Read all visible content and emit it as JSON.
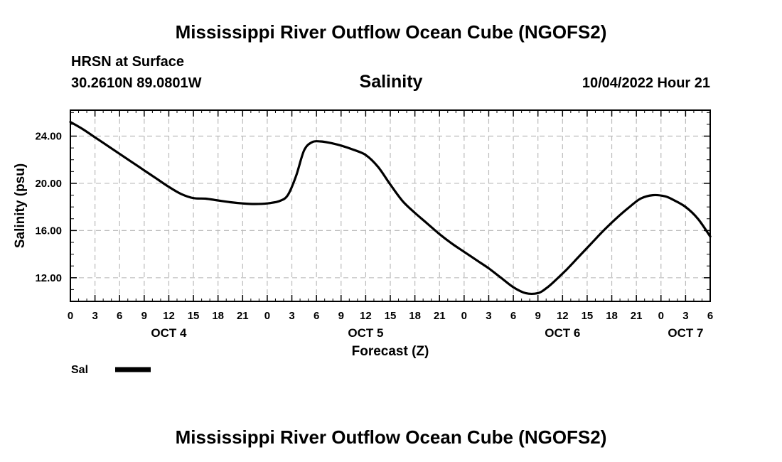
{
  "title_top": "Mississippi River Outflow Ocean Cube (NGOFS2)",
  "title_bottom": "Mississippi River Outflow Ocean Cube (NGOFS2)",
  "station": "HRSN at Surface",
  "coords": "30.2610N  89.0801W",
  "datetime": "10/04/2022 Hour 21",
  "colors": {
    "line": "#000000",
    "grid": "#bbbbbb",
    "frame": "#000000"
  },
  "chart_data": {
    "type": "line",
    "title": "Salinity",
    "xlabel": "Forecast (Z)",
    "ylabel": "Salinity (psu)",
    "xlim": [
      0,
      78
    ],
    "ylim": [
      10,
      26.2
    ],
    "yticks": [
      12,
      16,
      20,
      24
    ],
    "ytick_labels": [
      "12.00",
      "16.00",
      "20.00",
      "24.00"
    ],
    "xticks": [
      0,
      3,
      6,
      9,
      12,
      15,
      18,
      21,
      24,
      27,
      30,
      33,
      36,
      39,
      42,
      45,
      48,
      51,
      54,
      57,
      60,
      63,
      66,
      69,
      72,
      75,
      78
    ],
    "xtick_labels": [
      "0",
      "3",
      "6",
      "9",
      "12",
      "15",
      "18",
      "21",
      "0",
      "3",
      "6",
      "9",
      "12",
      "15",
      "18",
      "21",
      "0",
      "3",
      "6",
      "9",
      "12",
      "15",
      "18",
      "21",
      "0",
      "3",
      "6"
    ],
    "day_labels": [
      {
        "label": "OCT 4",
        "x": 12
      },
      {
        "label": "OCT 5",
        "x": 36
      },
      {
        "label": "OCT 6",
        "x": 60
      },
      {
        "label": "OCT 7",
        "x": 75
      }
    ],
    "grid": true,
    "legend_position": "bottom-left",
    "series": [
      {
        "name": "Sal",
        "x": [
          0,
          1.5,
          3,
          4.5,
          6,
          7.5,
          9,
          10.5,
          12,
          13.5,
          15,
          16.5,
          18,
          19.5,
          21,
          22.5,
          24,
          25.5,
          26.5,
          27.5,
          28.5,
          29.5,
          30.5,
          31.5,
          33,
          34.5,
          36,
          37.5,
          39,
          40.5,
          42,
          43.5,
          45,
          46.5,
          48,
          49.5,
          51,
          52.5,
          54,
          55.5,
          57,
          58,
          59,
          60.5,
          62,
          63.5,
          65,
          66.5,
          68,
          69.5,
          71,
          72.5,
          73.5,
          75,
          76.5,
          78
        ],
        "values": [
          25.2,
          24.6,
          23.9,
          23.2,
          22.5,
          21.8,
          21.1,
          20.4,
          19.7,
          19.1,
          18.75,
          18.7,
          18.55,
          18.4,
          18.3,
          18.25,
          18.3,
          18.5,
          19.0,
          20.6,
          22.8,
          23.5,
          23.55,
          23.45,
          23.2,
          22.85,
          22.4,
          21.4,
          19.9,
          18.5,
          17.5,
          16.6,
          15.7,
          14.9,
          14.2,
          13.5,
          12.8,
          12.0,
          11.2,
          10.7,
          10.7,
          11.1,
          11.7,
          12.7,
          13.8,
          14.9,
          16.0,
          17.0,
          17.9,
          18.7,
          19.0,
          18.9,
          18.6,
          18.0,
          17.0,
          15.5
        ]
      }
    ]
  }
}
